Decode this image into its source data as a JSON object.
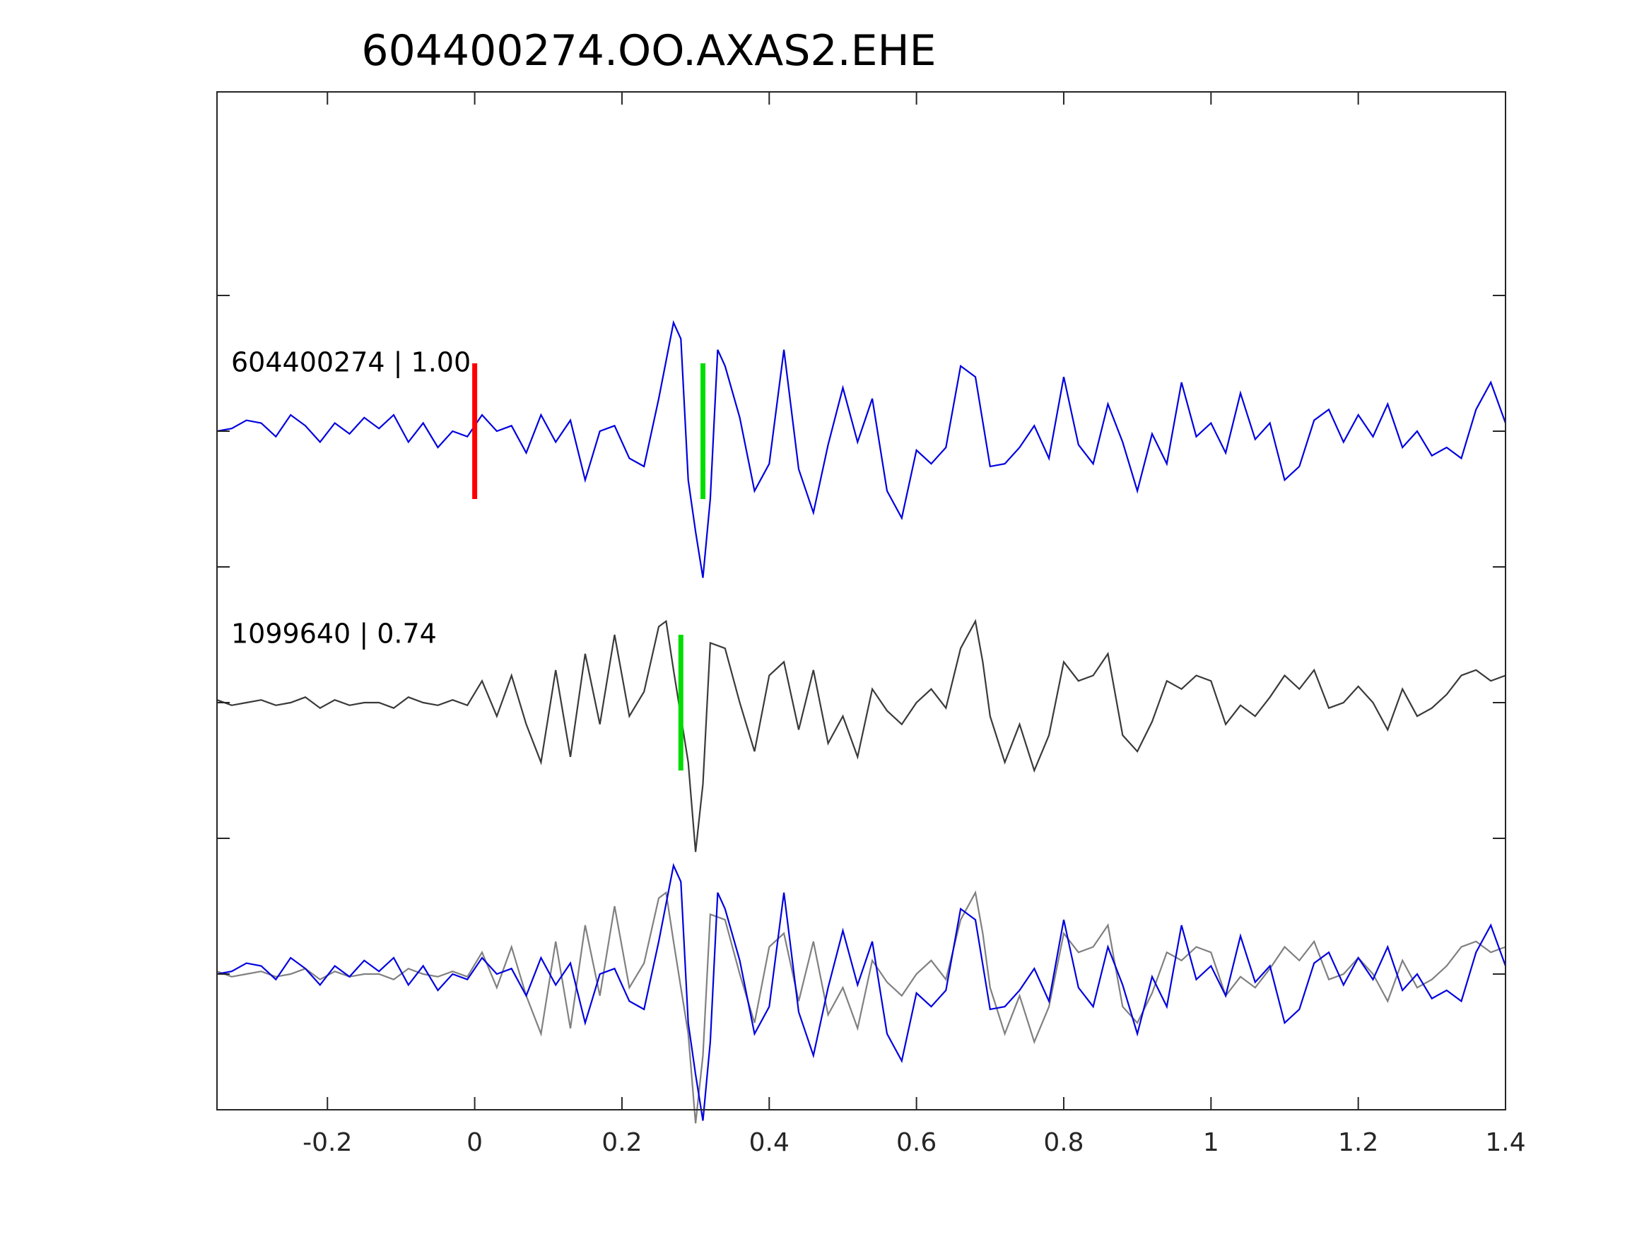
{
  "chart_data": {
    "type": "line",
    "title": "604400274.OO.AXAS2.EHE",
    "xlabel": "",
    "ylabel": "",
    "xlim": [
      -0.35,
      1.4
    ],
    "xticks": [
      -0.2,
      0,
      0.2,
      0.4,
      0.6,
      0.8,
      1,
      1.2,
      1.4
    ],
    "xtick_labels": [
      "-0.2",
      "0",
      "0.2",
      "0.4",
      "0.6",
      "0.8",
      "1",
      "1.2",
      "1.4"
    ],
    "ylim": [
      -0.5,
      3.25
    ],
    "yticks": [
      0,
      0.5,
      1,
      1.5,
      2,
      2.5
    ],
    "grid": false,
    "colors": {
      "template": "#0000e0",
      "detection": "#3a3a3a",
      "detection_overlay": "#808080",
      "p_pick": "#ff0000",
      "s_pick": "#00dd00",
      "axes": "#262626"
    },
    "traces": [
      {
        "label": "604400274 | 1.00",
        "baseline": 2.0,
        "color": "template",
        "p_pick": 0.0,
        "s_pick": 0.31,
        "x": [
          -0.35,
          -0.33,
          -0.31,
          -0.29,
          -0.27,
          -0.25,
          -0.23,
          -0.21,
          -0.19,
          -0.17,
          -0.15,
          -0.13,
          -0.11,
          -0.09,
          -0.07,
          -0.05,
          -0.03,
          -0.01,
          0.01,
          0.03,
          0.05,
          0.07,
          0.09,
          0.11,
          0.13,
          0.15,
          0.17,
          0.19,
          0.21,
          0.23,
          0.25,
          0.27,
          0.28,
          0.29,
          0.3,
          0.31,
          0.32,
          0.33,
          0.34,
          0.36,
          0.38,
          0.4,
          0.42,
          0.44,
          0.46,
          0.48,
          0.5,
          0.52,
          0.54,
          0.56,
          0.58,
          0.6,
          0.62,
          0.64,
          0.66,
          0.68,
          0.7,
          0.72,
          0.74,
          0.76,
          0.78,
          0.8,
          0.82,
          0.84,
          0.86,
          0.88,
          0.9,
          0.92,
          0.94,
          0.96,
          0.98,
          1.0,
          1.02,
          1.04,
          1.06,
          1.08,
          1.1,
          1.12,
          1.14,
          1.16,
          1.18,
          1.2,
          1.22,
          1.24,
          1.26,
          1.28,
          1.3,
          1.32,
          1.34,
          1.36,
          1.38,
          1.4
        ],
        "y": [
          2.0,
          2.01,
          2.04,
          2.03,
          1.98,
          2.06,
          2.02,
          1.96,
          2.03,
          1.99,
          2.05,
          2.01,
          2.06,
          1.96,
          2.03,
          1.94,
          2.0,
          1.98,
          2.06,
          2.0,
          2.02,
          1.92,
          2.06,
          1.96,
          2.04,
          1.82,
          2.0,
          2.02,
          1.9,
          1.87,
          2.12,
          2.4,
          2.34,
          1.82,
          1.63,
          1.46,
          1.75,
          2.3,
          2.24,
          2.05,
          1.78,
          1.88,
          2.3,
          1.86,
          1.7,
          1.95,
          2.16,
          1.96,
          2.12,
          1.78,
          1.68,
          1.93,
          1.88,
          1.94,
          2.24,
          2.2,
          1.87,
          1.88,
          1.94,
          2.02,
          1.9,
          2.2,
          1.95,
          1.88,
          2.1,
          1.96,
          1.78,
          1.99,
          1.88,
          2.18,
          1.98,
          2.03,
          1.92,
          2.14,
          1.97,
          2.03,
          1.82,
          1.87,
          2.04,
          2.08,
          1.96,
          2.06,
          1.98,
          2.1,
          1.94,
          2.0,
          1.91,
          1.94,
          1.9,
          2.08,
          2.18,
          2.03
        ]
      },
      {
        "label": "1099640 | 0.74",
        "baseline": 1.0,
        "color": "detection",
        "s_pick": 0.28,
        "x": [
          -0.35,
          -0.33,
          -0.31,
          -0.29,
          -0.27,
          -0.25,
          -0.23,
          -0.21,
          -0.19,
          -0.17,
          -0.15,
          -0.13,
          -0.11,
          -0.09,
          -0.07,
          -0.05,
          -0.03,
          -0.01,
          0.01,
          0.03,
          0.05,
          0.07,
          0.09,
          0.11,
          0.13,
          0.15,
          0.17,
          0.19,
          0.21,
          0.23,
          0.25,
          0.26,
          0.27,
          0.28,
          0.29,
          0.3,
          0.31,
          0.32,
          0.34,
          0.36,
          0.38,
          0.4,
          0.42,
          0.44,
          0.46,
          0.48,
          0.5,
          0.52,
          0.54,
          0.56,
          0.58,
          0.6,
          0.62,
          0.64,
          0.66,
          0.68,
          0.69,
          0.7,
          0.72,
          0.74,
          0.76,
          0.78,
          0.8,
          0.82,
          0.84,
          0.86,
          0.88,
          0.9,
          0.92,
          0.94,
          0.96,
          0.98,
          1.0,
          1.02,
          1.04,
          1.06,
          1.08,
          1.1,
          1.12,
          1.14,
          1.16,
          1.18,
          1.2,
          1.22,
          1.24,
          1.26,
          1.28,
          1.3,
          1.32,
          1.34,
          1.36,
          1.38,
          1.4
        ],
        "y": [
          1.01,
          0.99,
          1.0,
          1.01,
          0.99,
          1.0,
          1.02,
          0.98,
          1.01,
          0.99,
          1.0,
          1.0,
          0.98,
          1.02,
          1.0,
          0.99,
          1.01,
          0.99,
          1.08,
          0.95,
          1.1,
          0.92,
          0.78,
          1.12,
          0.8,
          1.18,
          0.92,
          1.25,
          0.95,
          1.04,
          1.28,
          1.3,
          1.12,
          0.95,
          0.78,
          0.45,
          0.7,
          1.22,
          1.2,
          1.0,
          0.82,
          1.1,
          1.15,
          0.9,
          1.12,
          0.85,
          0.95,
          0.8,
          1.05,
          0.97,
          0.92,
          1.0,
          1.05,
          0.98,
          1.2,
          1.3,
          1.15,
          0.95,
          0.78,
          0.92,
          0.75,
          0.88,
          1.15,
          1.08,
          1.1,
          1.18,
          0.88,
          0.82,
          0.93,
          1.08,
          1.05,
          1.1,
          1.08,
          0.92,
          0.99,
          0.95,
          1.02,
          1.1,
          1.05,
          1.12,
          0.98,
          1.0,
          1.06,
          1.0,
          0.9,
          1.05,
          0.95,
          0.98,
          1.03,
          1.1,
          1.12,
          1.08,
          1.1
        ]
      }
    ],
    "overlay": {
      "baseline": 0.0
    }
  }
}
